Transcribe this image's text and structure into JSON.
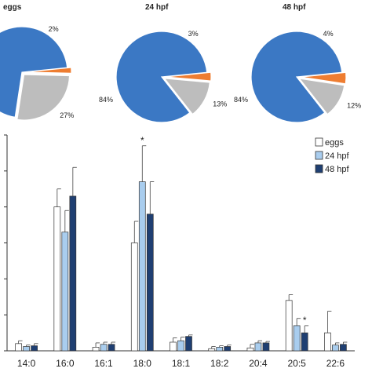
{
  "colors": {
    "blue": "#3b78c4",
    "orange": "#ee7d31",
    "gray": "#bdbdbd",
    "eggs": "#ffffff",
    "hpf24": "#a9cdee",
    "hpf48": "#1f3f72",
    "axis": "#333333",
    "error": "#444444"
  },
  "chart_data": [
    {
      "type": "pie",
      "title": "eggs",
      "slices": [
        {
          "value": 71,
          "label": "",
          "color_key": "blue"
        },
        {
          "value": 2,
          "label": "2%",
          "color_key": "orange"
        },
        {
          "value": 27,
          "label": "27%",
          "color_key": "gray"
        }
      ]
    },
    {
      "type": "pie",
      "title": "24 hpf",
      "slices": [
        {
          "value": 84,
          "label": "84%",
          "color_key": "blue"
        },
        {
          "value": 3,
          "label": "3%",
          "color_key": "orange"
        },
        {
          "value": 13,
          "label": "13%",
          "color_key": "gray"
        }
      ]
    },
    {
      "type": "pie",
      "title": "48 hpf",
      "slices": [
        {
          "value": 84,
          "label": "84%",
          "color_key": "blue"
        },
        {
          "value": 4,
          "label": "4%",
          "color_key": "orange"
        },
        {
          "value": 12,
          "label": "12%",
          "color_key": "gray"
        }
      ]
    },
    {
      "type": "bar",
      "categories": [
        "14:0",
        "16:0",
        "16:1",
        "18:0",
        "18:1",
        "18:2",
        "20:4",
        "20:5",
        "22:6"
      ],
      "ylim": [
        0,
        30
      ],
      "grid": false,
      "legend_position": "top-right",
      "series": [
        {
          "name": "eggs",
          "color_key": "eggs",
          "values": [
            1.0,
            20.0,
            0.5,
            15.0,
            1.2,
            0.3,
            0.4,
            7.0,
            2.5
          ],
          "errors": [
            0.4,
            2.5,
            0.6,
            3.0,
            0.6,
            0.3,
            0.5,
            0.8,
            3.0
          ]
        },
        {
          "name": "24 hpf",
          "color_key": "hpf24",
          "values": [
            0.6,
            16.5,
            0.9,
            23.5,
            1.4,
            0.5,
            1.1,
            3.5,
            0.8
          ],
          "errors": [
            0.2,
            3.0,
            0.3,
            5.0,
            0.5,
            0.2,
            0.3,
            1.0,
            0.3
          ]
        },
        {
          "name": "48 hpf",
          "color_key": "hpf48",
          "values": [
            0.7,
            21.5,
            0.9,
            19.0,
            2.0,
            0.6,
            1.1,
            2.5,
            0.9
          ],
          "errors": [
            0.3,
            4.0,
            0.3,
            4.5,
            0.2,
            0.2,
            0.2,
            1.0,
            0.3
          ]
        }
      ],
      "annotations": [
        {
          "category": "18:0",
          "series": "24 hpf",
          "text": "*"
        },
        {
          "category": "20:5",
          "series": "48 hpf",
          "text": "*"
        }
      ]
    }
  ]
}
